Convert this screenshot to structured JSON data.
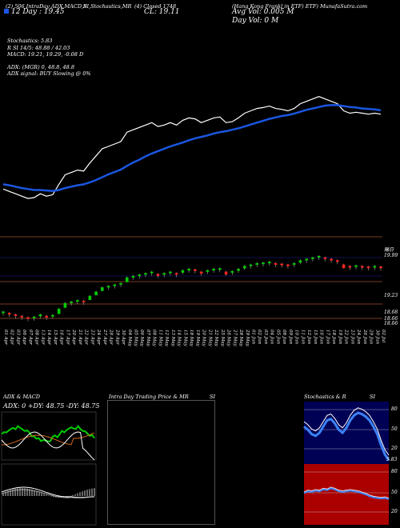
{
  "header": {
    "line1": "(2) 506 IntraDay ADX,MACD,B",
    "line1b": "SI,Stochastics,MR",
    "line1c": "(4) Closed 1748",
    "line1d": "(Hang Kong Frankl in ETF) ETF) MunafaSutra.com",
    "ema_label": "12 Day : 19.45",
    "close_label": "CL: 19.11",
    "avg_vol": "Avg Vol: 0.005 M",
    "day_vol": "Day Vol: 0   M"
  },
  "indicators": {
    "stoch": "Stochastics: 5.83",
    "rsi": "R                SI 14/5: 48.88 / 42.03",
    "macd": "MACD: 19.21, 19.29, -0.08  D",
    "adx": "ADX:                              (MGR) 0, 48.8, 48.8",
    "adx_signal": "ADX  signal:                                  BUY Slowing @ 0%"
  },
  "price_labels": {
    "top": "赌日",
    "p1": "19.99",
    "p2": "19.23",
    "p3": "18.68",
    "p4": "18.66",
    "p5": "18.66"
  },
  "dates": [
    "01 Apr",
    "02 Apr",
    "03 Apr",
    "06 Apr",
    "07 Apr",
    "08 Apr",
    "13 Apr",
    "14 Apr",
    "15 Apr",
    "16 Apr",
    "17 Apr",
    "20 Apr",
    "21 Apr",
    "22 Apr",
    "23 Apr",
    "24 Apr",
    "27 Apr",
    "28 Apr",
    "29 Apr",
    "30 Apr",
    "04 May",
    "05 May",
    "06 May",
    "07 May",
    "08 May",
    "11 May",
    "12 May",
    "13 May",
    "14 May",
    "15 May",
    "18 May",
    "19 May",
    "20 May",
    "21 May",
    "22 May",
    "25 May",
    "26 May",
    "27 May",
    "28 May",
    "29 May",
    "01 Jun",
    "02 Jun",
    "03 Jun",
    "04 Jun",
    "05 Jun",
    "08 Jun",
    "09 Jun",
    "10 Jun",
    "11 Jun",
    "12 Jun",
    "15 Jun",
    "16 Jun",
    "17 Jun",
    "18 Jun",
    "19 Jun",
    "22 Jun",
    "23 Jun",
    "24 Jun",
    "26 Jun",
    "29 Jun",
    "30 Jun",
    "02 Jul"
  ],
  "panels": {
    "left_title": "ADX  & MACD",
    "left_values": "ADX: 0  +DY: 48.75  -DY: 48.75",
    "mid_title": "Intra  Day Trading Price  & MR",
    "mid_title_b": "SI",
    "right_title": "Stochastics & R",
    "right_title_b": "SI",
    "stoch_ticks": [
      "80",
      "50",
      "20"
    ],
    "rsi_ticks": [
      "80",
      "50",
      "20"
    ],
    "stoch_end": "5.83"
  },
  "colors": {
    "price_line": "#ffffff",
    "ema_line": "#1a56e0",
    "up": "#00cc00",
    "down": "#ff2222",
    "stoch_bg": "#000055",
    "rsi_bg": "#aa0000"
  },
  "chart_data": {
    "type": "line",
    "title": "",
    "series": [
      {
        "values": [
          18.2,
          18.15,
          18.1,
          18.05,
          18.0,
          18.02,
          18.1,
          18.05,
          18.08,
          18.3,
          18.5,
          18.55,
          18.6,
          18.58,
          18.75,
          18.9,
          19.05,
          19.1,
          19.15,
          19.2,
          19.4,
          19.45,
          19.5,
          19.55,
          19.6,
          19.52,
          19.55,
          19.6,
          19.55,
          19.65,
          19.7,
          19.68,
          19.6,
          19.65,
          19.7,
          19.72,
          19.6,
          19.62,
          19.7,
          19.8,
          19.85,
          19.9,
          19.92,
          19.95,
          19.9,
          19.88,
          19.85,
          19.9,
          20.0,
          20.05,
          20.1,
          20.15,
          20.1,
          20.05,
          20.0,
          19.85,
          19.8,
          19.82,
          19.8,
          19.78,
          19.8,
          19.78
        ]
      },
      {
        "values": [
          18.3,
          18.28,
          18.25,
          18.22,
          18.2,
          18.18,
          18.18,
          18.17,
          18.16,
          18.18,
          18.22,
          18.25,
          18.28,
          18.3,
          18.34,
          18.39,
          18.45,
          18.51,
          18.56,
          18.61,
          18.69,
          18.76,
          18.82,
          18.89,
          18.95,
          19.0,
          19.05,
          19.1,
          19.14,
          19.18,
          19.23,
          19.27,
          19.3,
          19.33,
          19.37,
          19.4,
          19.42,
          19.45,
          19.48,
          19.52,
          19.56,
          19.6,
          19.64,
          19.68,
          19.71,
          19.74,
          19.76,
          19.79,
          19.83,
          19.87,
          19.9,
          19.93,
          19.96,
          19.97,
          19.97,
          19.95,
          19.93,
          19.92,
          19.9,
          19.89,
          19.88,
          19.86
        ]
      }
    ]
  }
}
